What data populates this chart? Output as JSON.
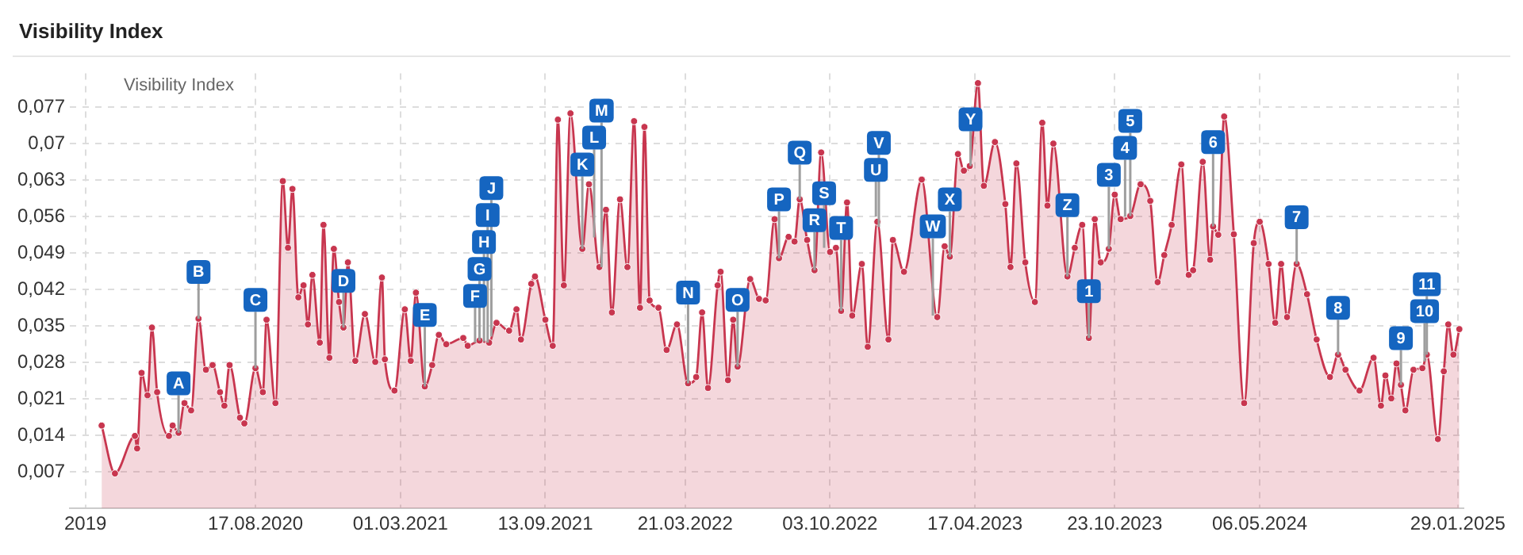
{
  "chart_data": {
    "type": "area",
    "title": "Visibility Index",
    "legend_title": "Visibility Index",
    "grid": true,
    "marker": "circle",
    "line_style": "solid",
    "xlim": [
      "2019-12-10",
      "2025-02-06"
    ],
    "xticks": [
      {
        "value": "2019-12-31",
        "label": "2019"
      },
      {
        "value": "2020-08-17",
        "label": "17.08.2020"
      },
      {
        "value": "2021-03-01",
        "label": "01.03.2021"
      },
      {
        "value": "2021-09-13",
        "label": "13.09.2021"
      },
      {
        "value": "2022-03-21",
        "label": "21.03.2022"
      },
      {
        "value": "2022-10-03",
        "label": "03.10.2022"
      },
      {
        "value": "2023-04-17",
        "label": "17.04.2023"
      },
      {
        "value": "2023-10-23",
        "label": "23.10.2023"
      },
      {
        "value": "2024-05-06",
        "label": "06.05.2024"
      },
      {
        "value": "2025-01-29",
        "label": "29.01.2025"
      }
    ],
    "ylim": [
      0,
      0.0835
    ],
    "yticks": [
      {
        "value": 0.007,
        "label": "0,007"
      },
      {
        "value": 0.014,
        "label": "0,014"
      },
      {
        "value": 0.021,
        "label": "0,021"
      },
      {
        "value": 0.028,
        "label": "0,028"
      },
      {
        "value": 0.035,
        "label": "0,035"
      },
      {
        "value": 0.042,
        "label": "0,042"
      },
      {
        "value": 0.049,
        "label": "0,049"
      },
      {
        "value": 0.056,
        "label": "0,056"
      },
      {
        "value": 0.063,
        "label": "0,063"
      },
      {
        "value": 0.07,
        "label": "0,07"
      },
      {
        "value": 0.077,
        "label": "0,077"
      }
    ],
    "series": [
      {
        "color": "#c8364f",
        "x": [
          "2020-01-22",
          "2020-02-09",
          "2020-03-07",
          "2020-03-10",
          "2020-03-16",
          "2020-03-24",
          "2020-03-30",
          "2020-04-06",
          "2020-04-22",
          "2020-04-27",
          "2020-05-05",
          "2020-05-13",
          "2020-05-22",
          "2020-06-01",
          "2020-06-11",
          "2020-06-20",
          "2020-06-30",
          "2020-07-06",
          "2020-07-13",
          "2020-07-27",
          "2020-08-02",
          "2020-08-17",
          "2020-08-27",
          "2020-09-01",
          "2020-09-13",
          "2020-09-23",
          "2020-09-30",
          "2020-10-06",
          "2020-10-14",
          "2020-10-21",
          "2020-10-27",
          "2020-11-02",
          "2020-11-12",
          "2020-11-17",
          "2020-11-25",
          "2020-12-01",
          "2020-12-08",
          "2020-12-14",
          "2020-12-20",
          "2020-12-30",
          "2021-01-12",
          "2021-01-26",
          "2021-02-04",
          "2021-02-08",
          "2021-02-21",
          "2021-03-07",
          "2021-03-15",
          "2021-03-22",
          "2021-04-03",
          "2021-04-13",
          "2021-04-22",
          "2021-05-02",
          "2021-05-25",
          "2021-05-31",
          "2021-06-16",
          "2021-06-29",
          "2021-07-09",
          "2021-07-26",
          "2021-08-05",
          "2021-08-11",
          "2021-08-25",
          "2021-08-30",
          "2021-09-13",
          "2021-09-23",
          "2021-09-30",
          "2021-10-08",
          "2021-10-17",
          "2021-11-02",
          "2021-11-11",
          "2021-11-25",
          "2021-12-04",
          "2021-12-12",
          "2021-12-23",
          "2022-01-02",
          "2022-01-11",
          "2022-01-19",
          "2022-01-25",
          "2022-02-01",
          "2022-02-13",
          "2022-02-24",
          "2022-03-10",
          "2022-03-25",
          "2022-04-05",
          "2022-04-13",
          "2022-04-21",
          "2022-05-04",
          "2022-05-08",
          "2022-05-18",
          "2022-05-25",
          "2022-05-31",
          "2022-06-17",
          "2022-06-29",
          "2022-07-08",
          "2022-07-20",
          "2022-07-26",
          "2022-08-08",
          "2022-08-16",
          "2022-08-23",
          "2022-09-02",
          "2022-09-12",
          "2022-09-21",
          "2022-10-03",
          "2022-10-11",
          "2022-10-18",
          "2022-10-26",
          "2022-11-02",
          "2022-11-15",
          "2022-11-23",
          "2022-12-06",
          "2022-12-21",
          "2022-12-27",
          "2023-01-11",
          "2023-02-04",
          "2023-02-25",
          "2023-03-07",
          "2023-03-14",
          "2023-03-25",
          "2023-04-02",
          "2023-04-10",
          "2023-04-21",
          "2023-04-29",
          "2023-05-14",
          "2023-05-28",
          "2023-06-04",
          "2023-06-12",
          "2023-06-24",
          "2023-07-07",
          "2023-07-17",
          "2023-07-24",
          "2023-08-01",
          "2023-08-20",
          "2023-08-30",
          "2023-09-09",
          "2023-09-18",
          "2023-09-26",
          "2023-10-04",
          "2023-10-15",
          "2023-10-23",
          "2023-10-31",
          "2023-11-13",
          "2023-11-27",
          "2023-12-10",
          "2023-12-20",
          "2023-12-29",
          "2024-01-08",
          "2024-01-21",
          "2024-01-31",
          "2024-02-06",
          "2024-02-19",
          "2024-02-29",
          "2024-03-04",
          "2024-03-11",
          "2024-03-19",
          "2024-04-01",
          "2024-04-15",
          "2024-04-28",
          "2024-05-06",
          "2024-05-18",
          "2024-05-27",
          "2024-06-04",
          "2024-06-12",
          "2024-06-25",
          "2024-07-09",
          "2024-07-22",
          "2024-08-09",
          "2024-08-20",
          "2024-08-30",
          "2024-09-18",
          "2024-10-07",
          "2024-10-17",
          "2024-10-23",
          "2024-10-31",
          "2024-11-07",
          "2024-11-13",
          "2024-11-19",
          "2024-11-30",
          "2024-12-12",
          "2024-12-18",
          "2025-01-02",
          "2025-01-10",
          "2025-01-16",
          "2025-01-23",
          "2025-01-31"
        ],
        "values": [
          0.0159,
          0.0067,
          0.0139,
          0.0115,
          0.026,
          0.0217,
          0.0347,
          0.0223,
          0.0139,
          0.0159,
          0.0145,
          0.0202,
          0.0188,
          0.0364,
          0.0266,
          0.0275,
          0.0223,
          0.0197,
          0.0275,
          0.0174,
          0.0163,
          0.0269,
          0.0223,
          0.0362,
          0.0202,
          0.0628,
          0.05,
          0.0613,
          0.0405,
          0.0428,
          0.0353,
          0.0448,
          0.0318,
          0.0544,
          0.0289,
          0.0498,
          0.0396,
          0.0347,
          0.0472,
          0.0283,
          0.0373,
          0.0281,
          0.0443,
          0.0286,
          0.0226,
          0.0382,
          0.0283,
          0.0414,
          0.0234,
          0.0275,
          0.0333,
          0.0315,
          0.0327,
          0.0312,
          0.0322,
          0.0318,
          0.0356,
          0.0341,
          0.0382,
          0.0324,
          0.0431,
          0.0445,
          0.0362,
          0.0312,
          0.0746,
          0.0428,
          0.0758,
          0.0498,
          0.0622,
          0.0463,
          0.0573,
          0.0376,
          0.0593,
          0.0463,
          0.0743,
          0.0385,
          0.0732,
          0.0399,
          0.0385,
          0.0304,
          0.0353,
          0.024,
          0.0252,
          0.0376,
          0.0231,
          0.0428,
          0.0454,
          0.0246,
          0.0362,
          0.0272,
          0.044,
          0.0402,
          0.0399,
          0.0555,
          0.048,
          0.0521,
          0.0512,
          0.0593,
          0.0515,
          0.0457,
          0.0683,
          0.0492,
          0.05,
          0.0379,
          0.0587,
          0.037,
          0.0469,
          0.031,
          0.055,
          0.0324,
          0.0515,
          0.0454,
          0.0631,
          0.0367,
          0.0503,
          0.0483,
          0.068,
          0.0648,
          0.0657,
          0.0816,
          0.0619,
          0.0703,
          0.0584,
          0.0463,
          0.0662,
          0.0472,
          0.0396,
          0.074,
          0.0581,
          0.07,
          0.0445,
          0.05,
          0.0544,
          0.0327,
          0.0555,
          0.0472,
          0.0498,
          0.0602,
          0.0555,
          0.0561,
          0.0622,
          0.059,
          0.0434,
          0.0486,
          0.0544,
          0.066,
          0.0448,
          0.0457,
          0.0665,
          0.0477,
          0.0541,
          0.0525,
          0.0752,
          0.0526,
          0.0202,
          0.0509,
          0.055,
          0.0469,
          0.0356,
          0.0469,
          0.0367,
          0.0469,
          0.0411,
          0.0324,
          0.0252,
          0.0295,
          0.0266,
          0.0226,
          0.0289,
          0.0197,
          0.0255,
          0.0211,
          0.0278,
          0.0237,
          0.0188,
          0.0266,
          0.0269,
          0.0295,
          0.0133,
          0.0263,
          0.0353,
          0.0295,
          0.0344
        ]
      }
    ],
    "annotations": [
      {
        "text": "A",
        "x": "2020-05-05",
        "y": 0.0145
      },
      {
        "text": "B",
        "x": "2020-06-01",
        "y": 0.0364
      },
      {
        "text": "C",
        "x": "2020-08-17",
        "y": 0.0269
      },
      {
        "text": "D",
        "x": "2020-12-14",
        "y": 0.0347
      },
      {
        "text": "E",
        "x": "2021-04-03",
        "y": 0.0234
      },
      {
        "text": "F",
        "x": "2021-06-10",
        "y": 0.0318
      },
      {
        "text": "G",
        "x": "2021-06-16",
        "y": 0.0322
      },
      {
        "text": "H",
        "x": "2021-06-22",
        "y": 0.032
      },
      {
        "text": "I",
        "x": "2021-06-27",
        "y": 0.0318
      },
      {
        "text": "J",
        "x": "2021-07-02",
        "y": 0.033
      },
      {
        "text": "K",
        "x": "2021-11-02",
        "y": 0.0498
      },
      {
        "text": "L",
        "x": "2021-11-18",
        "y": 0.052
      },
      {
        "text": "M",
        "x": "2021-11-28",
        "y": 0.0463
      },
      {
        "text": "N",
        "x": "2022-03-25",
        "y": 0.024
      },
      {
        "text": "O",
        "x": "2022-05-31",
        "y": 0.0272
      },
      {
        "text": "P",
        "x": "2022-07-26",
        "y": 0.048
      },
      {
        "text": "Q",
        "x": "2022-08-23",
        "y": 0.0593
      },
      {
        "text": "R",
        "x": "2022-09-12",
        "y": 0.0457
      },
      {
        "text": "S",
        "x": "2022-09-25",
        "y": 0.05
      },
      {
        "text": "T",
        "x": "2022-10-18",
        "y": 0.0379
      },
      {
        "text": "U",
        "x": "2022-12-04",
        "y": 0.056
      },
      {
        "text": "V",
        "x": "2022-12-08",
        "y": 0.054
      },
      {
        "text": "W",
        "x": "2023-02-19",
        "y": 0.037
      },
      {
        "text": "X",
        "x": "2023-03-14",
        "y": 0.0483
      },
      {
        "text": "Y",
        "x": "2023-04-11",
        "y": 0.0657
      },
      {
        "text": "Z",
        "x": "2023-08-20",
        "y": 0.0445
      },
      {
        "text": "1",
        "x": "2023-09-18",
        "y": 0.0327
      },
      {
        "text": "3",
        "x": "2023-10-15",
        "y": 0.0498
      },
      {
        "text": "4",
        "x": "2023-11-06",
        "y": 0.056
      },
      {
        "text": "5",
        "x": "2023-11-13",
        "y": 0.0561
      },
      {
        "text": "6",
        "x": "2024-03-04",
        "y": 0.0541
      },
      {
        "text": "7",
        "x": "2024-06-25",
        "y": 0.0469
      },
      {
        "text": "8",
        "x": "2024-08-20",
        "y": 0.0295
      },
      {
        "text": "9",
        "x": "2024-11-13",
        "y": 0.0237
      },
      {
        "text": "10",
        "x": "2024-12-15",
        "y": 0.0282
      },
      {
        "text": "11",
        "x": "2024-12-18",
        "y": 0.0295
      }
    ]
  }
}
